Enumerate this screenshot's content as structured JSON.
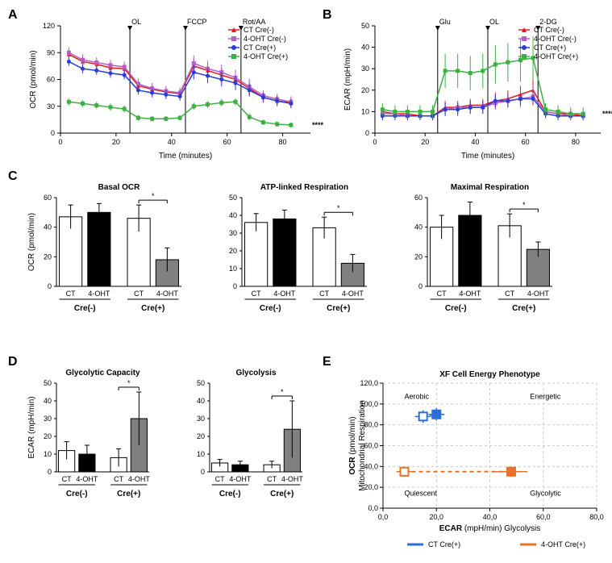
{
  "colors": {
    "red": "#e41a1c",
    "purple": "#b55fc4",
    "blue": "#2b3bd6",
    "green": "#3cb043",
    "black": "#000000",
    "white": "#ffffff",
    "gray_fill": "#808080",
    "grid": "#cccccc",
    "ct_cre_plus": "#2b6fd6",
    "oh_cre_plus": "#e8722c"
  },
  "panelA": {
    "title": "",
    "x_title": "Time (minutes)",
    "y_title": "OCR (pmol/min)",
    "x_ticks": [
      0,
      20,
      40,
      60,
      80
    ],
    "y_ticks": [
      0,
      30,
      60,
      90,
      120
    ],
    "ylim": [
      0,
      120
    ],
    "xlim": [
      0,
      90
    ],
    "injections": [
      {
        "x": 25,
        "label": "OL"
      },
      {
        "x": 45,
        "label": "FCCP"
      },
      {
        "x": 65,
        "label": "Rot/AA"
      }
    ],
    "series": [
      {
        "name": "CT Cre(-)",
        "color_key": "red",
        "marker": "triangle",
        "x": [
          3,
          8,
          13,
          18,
          23,
          28,
          33,
          38,
          43,
          48,
          53,
          58,
          63,
          68,
          73,
          78,
          83
        ],
        "y": [
          88,
          80,
          77,
          73,
          72,
          53,
          49,
          46,
          44,
          75,
          70,
          65,
          60,
          50,
          40,
          36,
          34
        ],
        "err": [
          5,
          5,
          5,
          5,
          5,
          5,
          5,
          5,
          5,
          8,
          8,
          8,
          8,
          8,
          6,
          6,
          6
        ]
      },
      {
        "name": "4-OHT Cre(-)",
        "color_key": "purple",
        "marker": "square",
        "x": [
          3,
          8,
          13,
          18,
          23,
          28,
          33,
          38,
          43,
          48,
          53,
          58,
          63,
          68,
          73,
          78,
          83
        ],
        "y": [
          90,
          82,
          79,
          76,
          74,
          55,
          50,
          47,
          45,
          78,
          72,
          68,
          62,
          52,
          42,
          38,
          35
        ],
        "err": [
          6,
          6,
          6,
          6,
          6,
          6,
          6,
          6,
          6,
          9,
          9,
          9,
          9,
          9,
          6,
          6,
          6
        ]
      },
      {
        "name": "CT Cre(+)",
        "color_key": "blue",
        "marker": "circle",
        "x": [
          3,
          8,
          13,
          18,
          23,
          28,
          33,
          38,
          43,
          48,
          53,
          58,
          63,
          68,
          73,
          78,
          83
        ],
        "y": [
          80,
          72,
          70,
          67,
          65,
          48,
          45,
          43,
          41,
          68,
          64,
          60,
          56,
          48,
          40,
          36,
          33
        ],
        "err": [
          5,
          5,
          5,
          5,
          5,
          5,
          5,
          5,
          5,
          8,
          8,
          8,
          8,
          7,
          5,
          5,
          5
        ]
      },
      {
        "name": "4-OHT Cre(+)",
        "color_key": "green",
        "marker": "square",
        "x": [
          3,
          8,
          13,
          18,
          23,
          28,
          33,
          38,
          43,
          48,
          53,
          58,
          63,
          68,
          73,
          78,
          83
        ],
        "y": [
          35,
          33,
          31,
          29,
          27,
          17,
          16,
          16,
          17,
          30,
          32,
          34,
          35,
          18,
          12,
          10,
          9
        ],
        "err": [
          4,
          4,
          4,
          4,
          4,
          3,
          3,
          3,
          3,
          4,
          4,
          4,
          4,
          4,
          3,
          3,
          3
        ]
      }
    ],
    "sig_label": "****"
  },
  "panelB": {
    "x_title": "Time (minutes)",
    "y_title": "ECAR (mpH/min)",
    "x_ticks": [
      0,
      20,
      40,
      60,
      80
    ],
    "y_ticks": [
      0,
      10,
      20,
      30,
      40,
      50
    ],
    "ylim": [
      0,
      50
    ],
    "xlim": [
      0,
      90
    ],
    "injections": [
      {
        "x": 25,
        "label": "Glu"
      },
      {
        "x": 45,
        "label": "OL"
      },
      {
        "x": 65,
        "label": "2-DG"
      }
    ],
    "series": [
      {
        "name": "CT Cre(-)",
        "color_key": "red",
        "marker": "triangle",
        "x": [
          3,
          8,
          13,
          18,
          23,
          28,
          33,
          38,
          43,
          48,
          53,
          58,
          63,
          68,
          73,
          78,
          83
        ],
        "y": [
          10,
          9,
          9,
          8,
          8,
          12,
          12,
          13,
          13,
          15,
          16,
          18,
          20,
          10,
          9,
          9,
          8
        ],
        "err": [
          2,
          2,
          2,
          2,
          2,
          3,
          3,
          3,
          3,
          4,
          4,
          4,
          5,
          3,
          2,
          2,
          2
        ]
      },
      {
        "name": "4-OHT Cre(-)",
        "color_key": "purple",
        "marker": "square",
        "x": [
          3,
          8,
          13,
          18,
          23,
          28,
          33,
          38,
          43,
          48,
          53,
          58,
          63,
          68,
          73,
          78,
          83
        ],
        "y": [
          9,
          9,
          8,
          8,
          8,
          11,
          12,
          12,
          12,
          14,
          15,
          16,
          17,
          10,
          9,
          8,
          8
        ],
        "err": [
          2,
          2,
          2,
          2,
          2,
          3,
          3,
          3,
          3,
          3,
          3,
          4,
          4,
          3,
          2,
          2,
          2
        ]
      },
      {
        "name": "CT Cre(+)",
        "color_key": "blue",
        "marker": "circle",
        "x": [
          3,
          8,
          13,
          18,
          23,
          28,
          33,
          38,
          43,
          48,
          53,
          58,
          63,
          68,
          73,
          78,
          83
        ],
        "y": [
          8,
          8,
          8,
          8,
          8,
          11,
          11,
          12,
          12,
          15,
          15,
          16,
          16,
          9,
          8,
          8,
          8
        ],
        "err": [
          2,
          2,
          2,
          2,
          2,
          3,
          3,
          3,
          3,
          3,
          3,
          3,
          3,
          2,
          2,
          2,
          2
        ]
      },
      {
        "name": "4-OHT Cre(+)",
        "color_key": "green",
        "marker": "square",
        "x": [
          3,
          8,
          13,
          18,
          23,
          28,
          33,
          38,
          43,
          48,
          53,
          58,
          63,
          68,
          73,
          78,
          83
        ],
        "y": [
          11,
          10,
          10,
          10,
          10,
          29,
          29,
          28,
          29,
          32,
          33,
          34,
          35,
          11,
          10,
          9,
          9
        ],
        "err": [
          3,
          3,
          3,
          3,
          3,
          8,
          8,
          8,
          8,
          9,
          9,
          10,
          10,
          3,
          3,
          3,
          3
        ]
      }
    ],
    "sig_label": "****"
  },
  "panelC": {
    "y_title": "OCR (pmol/min)",
    "charts": [
      {
        "title": "Basal OCR",
        "y_ticks": [
          0,
          20,
          40,
          60
        ],
        "ylim": [
          0,
          60
        ],
        "bars": [
          {
            "label": "CT",
            "group": "Cre(-)",
            "fill": "white",
            "y": 47,
            "err": 8
          },
          {
            "label": "4-OHT",
            "group": "Cre(-)",
            "fill": "black",
            "y": 50,
            "err": 6
          },
          {
            "label": "CT",
            "group": "Cre(+)",
            "fill": "white",
            "y": 46,
            "err": 9
          },
          {
            "label": "4-OHT",
            "group": "Cre(+)",
            "fill": "gray",
            "y": 18,
            "err": 8
          }
        ],
        "sig": "*",
        "sig_between": [
          2,
          3
        ]
      },
      {
        "title": "ATP-linked Respiration",
        "y_ticks": [
          0,
          10,
          20,
          30,
          40,
          50
        ],
        "ylim": [
          0,
          50
        ],
        "bars": [
          {
            "label": "CT",
            "group": "Cre(-)",
            "fill": "white",
            "y": 36,
            "err": 5
          },
          {
            "label": "4-OHT",
            "group": "Cre(-)",
            "fill": "black",
            "y": 38,
            "err": 5
          },
          {
            "label": "CT",
            "group": "Cre(+)",
            "fill": "white",
            "y": 33,
            "err": 6
          },
          {
            "label": "4-OHT",
            "group": "Cre(+)",
            "fill": "gray",
            "y": 13,
            "err": 5
          }
        ],
        "sig": "*",
        "sig_between": [
          2,
          3
        ]
      },
      {
        "title": "Maximal Respiration",
        "y_ticks": [
          0,
          20,
          40,
          60
        ],
        "ylim": [
          0,
          60
        ],
        "bars": [
          {
            "label": "CT",
            "group": "Cre(-)",
            "fill": "white",
            "y": 40,
            "err": 8
          },
          {
            "label": "4-OHT",
            "group": "Cre(-)",
            "fill": "black",
            "y": 48,
            "err": 9
          },
          {
            "label": "CT",
            "group": "Cre(+)",
            "fill": "white",
            "y": 41,
            "err": 8
          },
          {
            "label": "4-OHT",
            "group": "Cre(+)",
            "fill": "gray",
            "y": 25,
            "err": 5
          }
        ],
        "sig": "*",
        "sig_between": [
          2,
          3
        ]
      }
    ]
  },
  "panelD": {
    "y_title": "ECAR (mpH/min)",
    "charts": [
      {
        "title": "Glycolytic Capacity",
        "y_ticks": [
          0,
          10,
          20,
          30,
          40,
          50
        ],
        "ylim": [
          0,
          50
        ],
        "bars": [
          {
            "label": "CT",
            "group": "Cre(-)",
            "fill": "white",
            "y": 12,
            "err": 5
          },
          {
            "label": "4-OHT",
            "group": "Cre(-)",
            "fill": "black",
            "y": 10,
            "err": 5
          },
          {
            "label": "CT",
            "group": "Cre(+)",
            "fill": "white",
            "y": 8,
            "err": 5
          },
          {
            "label": "4-OHT",
            "group": "Cre(+)",
            "fill": "gray",
            "y": 30,
            "err": 15
          }
        ],
        "sig": "*",
        "sig_between": [
          2,
          3
        ]
      },
      {
        "title": "Glycolysis",
        "y_ticks": [
          0,
          10,
          20,
          30,
          40,
          50
        ],
        "ylim": [
          0,
          50
        ],
        "bars": [
          {
            "label": "CT",
            "group": "Cre(-)",
            "fill": "white",
            "y": 5,
            "err": 2
          },
          {
            "label": "4-OHT",
            "group": "Cre(-)",
            "fill": "black",
            "y": 4,
            "err": 2
          },
          {
            "label": "CT",
            "group": "Cre(+)",
            "fill": "white",
            "y": 4,
            "err": 2
          },
          {
            "label": "4-OHT",
            "group": "Cre(+)",
            "fill": "gray",
            "y": 24,
            "err": 16
          }
        ],
        "sig": "*",
        "sig_between": [
          2,
          3
        ]
      }
    ]
  },
  "panelE": {
    "title": "XF Cell Energy Phenotype",
    "x_title": "ECAR (mpH/min) Glycolysis",
    "y_title_line1": "OCR (pmol/min)",
    "y_title_line2": "Mitochondrial Respiration",
    "x_ticks": [
      "0,0",
      "20,0",
      "40,0",
      "60,0",
      "80,0"
    ],
    "y_ticks": [
      "0,0",
      "20,0",
      "40,0",
      "60,0",
      "80,0",
      "100,0",
      "120,0"
    ],
    "x_vals": [
      0,
      20,
      40,
      60,
      80
    ],
    "y_vals": [
      0,
      20,
      40,
      60,
      80,
      100,
      120
    ],
    "xlim": [
      0,
      80
    ],
    "ylim": [
      0,
      120
    ],
    "quadrants": [
      "Aerobic",
      "Energetic",
      "Quiescent",
      "Glycolytic"
    ],
    "points": [
      {
        "name": "CT Cre(+)",
        "color_key": "ct_cre_plus",
        "open": {
          "x": 15,
          "y": 88,
          "ex": 3,
          "ey": 6
        },
        "closed": {
          "x": 20,
          "y": 90,
          "ex": 3,
          "ey": 6
        }
      },
      {
        "name": "4-OHT Cre(+)",
        "color_key": "oh_cre_plus",
        "open": {
          "x": 8,
          "y": 35,
          "ex": 3,
          "ey": 5
        },
        "closed": {
          "x": 48,
          "y": 35,
          "ex": 6,
          "ey": 5
        }
      }
    ],
    "legend": [
      "CT Cre(+)",
      "4-OHT Cre(+)"
    ]
  }
}
